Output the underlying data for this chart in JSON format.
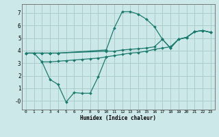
{
  "background_color": "#cce8e8",
  "grid_color": "#aacccc",
  "line_color": "#1a7a6e",
  "xlabel": "Humidex (Indice chaleur)",
  "xlim": [
    -0.5,
    23.5
  ],
  "ylim": [
    -0.7,
    7.7
  ],
  "xticks": [
    0,
    1,
    2,
    3,
    4,
    5,
    6,
    7,
    8,
    9,
    10,
    11,
    12,
    13,
    14,
    15,
    16,
    17,
    18,
    19,
    20,
    21,
    22,
    23
  ],
  "yticks": [
    0,
    1,
    2,
    3,
    4,
    5,
    6,
    7
  ],
  "ytick_labels": [
    "-0",
    "1",
    "2",
    "3",
    "4",
    "5",
    "6",
    "7"
  ],
  "series": [
    {
      "x": [
        0,
        1,
        2,
        3,
        4,
        10,
        11,
        12,
        13,
        14,
        15,
        16,
        17,
        18,
        19,
        20,
        21,
        22,
        23
      ],
      "y": [
        3.8,
        3.8,
        3.8,
        3.8,
        3.8,
        4.05,
        5.8,
        7.1,
        7.1,
        6.9,
        6.5,
        5.9,
        4.9,
        4.2,
        4.9,
        5.05,
        5.5,
        5.6,
        5.45
      ]
    },
    {
      "x": [
        0,
        1,
        2,
        3,
        4,
        10,
        11,
        12,
        13,
        14,
        15,
        16,
        17,
        18,
        19,
        20,
        21,
        22,
        23
      ],
      "y": [
        3.8,
        3.8,
        3.8,
        3.8,
        3.8,
        3.95,
        3.95,
        4.05,
        4.1,
        4.15,
        4.2,
        4.3,
        4.9,
        4.2,
        4.9,
        5.05,
        5.5,
        5.6,
        5.45
      ]
    },
    {
      "x": [
        0,
        1,
        2,
        3,
        4,
        5,
        6,
        7,
        8,
        9,
        10,
        11,
        12,
        13,
        14,
        15,
        16,
        17,
        18,
        19,
        20,
        21,
        22,
        23
      ],
      "y": [
        3.8,
        3.8,
        3.1,
        3.1,
        3.15,
        3.2,
        3.25,
        3.3,
        3.35,
        3.4,
        3.5,
        3.6,
        3.7,
        3.8,
        3.85,
        3.95,
        4.1,
        4.2,
        4.3,
        4.9,
        5.05,
        5.5,
        5.6,
        5.45
      ]
    },
    {
      "x": [
        2,
        3,
        4,
        5,
        6,
        7,
        8,
        9,
        10
      ],
      "y": [
        3.1,
        1.7,
        1.3,
        -0.1,
        0.65,
        0.6,
        0.6,
        1.9,
        3.5
      ]
    }
  ]
}
